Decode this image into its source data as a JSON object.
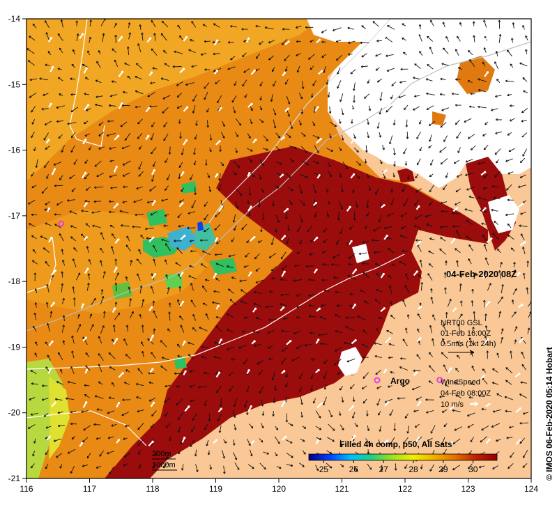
{
  "map": {
    "lon_ticks": [
      "116",
      "117",
      "118",
      "119",
      "120",
      "121",
      "122",
      "123",
      "124"
    ],
    "lat_ticks": [
      "-14",
      "-15",
      "-16",
      "-17",
      "-18",
      "-19",
      "-20",
      "-21"
    ],
    "lon_range": [
      116,
      124
    ],
    "lat_range": [
      -21,
      -14
    ],
    "timestamp": "04-Feb-2020 08Z",
    "credit": "© IMOS 06-Feb-2020 05:14 Hobart",
    "colors": {
      "land": "#f9c896",
      "cloud": "#ffffff",
      "sst_hot": "#9b0c0c",
      "sst_warm": "#e07a10",
      "sst_mid": "#f0a020"
    }
  },
  "current_legend": {
    "title": "NRT00 GSL",
    "time": "01-Feb 16:00Z",
    "scale": "0.5m/s (1kt 24h)"
  },
  "wind_legend": {
    "title": "WindSpeed",
    "time": "04-Feb 08:00Z",
    "scale": "10 m/s"
  },
  "argo": {
    "label": "Argo",
    "color": "#e040e0",
    "floats": [
      {
        "lon": 116.55,
        "lat": -17.12
      },
      {
        "lon": 122.55,
        "lat": -19.5
      }
    ]
  },
  "isobaths": [
    "200m",
    "1000m"
  ],
  "colorbar": {
    "title": "Filled 4h comp, p50, All Sats",
    "ticks": [
      "25",
      "26",
      "27",
      "28",
      "29",
      "30"
    ],
    "range": [
      24.5,
      30.8
    ],
    "stops": [
      "#00007f",
      "#0040ff",
      "#00c0ff",
      "#20d080",
      "#a0e020",
      "#f0f000",
      "#f0b000",
      "#e07000",
      "#c02000",
      "#900000"
    ]
  }
}
